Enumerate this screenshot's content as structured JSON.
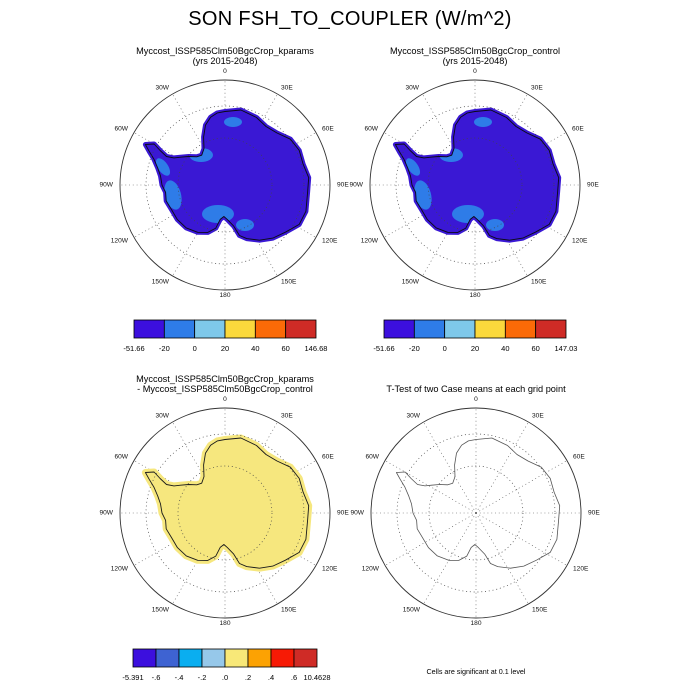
{
  "figure_title": "SON FSH_TO_COUPLER (W/m^2)",
  "grid_labels": [
    {
      "text": "0",
      "angle": 0
    },
    {
      "text": "30E",
      "angle": 30
    },
    {
      "text": "60E",
      "angle": 60
    },
    {
      "text": "90E",
      "angle": 90
    },
    {
      "text": "120E",
      "angle": 120
    },
    {
      "text": "150E",
      "angle": 150
    },
    {
      "text": "180",
      "angle": 180
    },
    {
      "text": "150W",
      "angle": 210
    },
    {
      "text": "120W",
      "angle": 240
    },
    {
      "text": "90W",
      "angle": 270
    },
    {
      "text": "60W",
      "angle": 300
    },
    {
      "text": "30W",
      "angle": 330
    }
  ],
  "panels": [
    {
      "id": "kparams",
      "title_lines": [
        "Myccost_ISSP585Clm50BgcCrop_kparams",
        "(yrs 2015-2048)"
      ],
      "map": {
        "continent_fill": "#3A18D4",
        "patch_fill": "#2E7CE8",
        "outline": "#0a0a14",
        "has_patches": true
      },
      "colorbar": {
        "colors": [
          "#3C0FDE",
          "#2E7CE8",
          "#7EC8EA",
          "#FBD93C",
          "#FB6A07",
          "#CF2B26"
        ],
        "tick_labels": [
          "-51.66",
          "-20",
          "0",
          "20",
          "40",
          "60",
          "146.68"
        ]
      }
    },
    {
      "id": "control",
      "title_lines": [
        "Myccost_ISSP585Clm50BgcCrop_control",
        "(yrs 2015-2048)"
      ],
      "map": {
        "continent_fill": "#3A18D4",
        "patch_fill": "#2E7CE8",
        "outline": "#0a0a14",
        "has_patches": true
      },
      "colorbar": {
        "colors": [
          "#3C0FDE",
          "#2E7CE8",
          "#7EC8EA",
          "#FBD93C",
          "#FB6A07",
          "#CF2B26"
        ],
        "tick_labels": [
          "-51.66",
          "-20",
          "0",
          "20",
          "40",
          "60",
          "147.03"
        ]
      }
    },
    {
      "id": "diff",
      "title_lines": [
        "Myccost_ISSP585Clm50BgcCrop_kparams",
        "- Myccost_ISSP585Clm50BgcCrop_control"
      ],
      "map": {
        "continent_fill": "#F6E77E",
        "outline": "#1a1a1a",
        "has_patches": false
      },
      "colorbar": {
        "colors": [
          "#3C0FDE",
          "#3E63D2",
          "#0AAEF0",
          "#96C8EA",
          "#F8E878",
          "#FCA203",
          "#F71A05",
          "#CF2B26"
        ],
        "tick_labels": [
          "-5.391",
          "-.6",
          "-.4",
          "-.2",
          ".0",
          ".2",
          ".4",
          ".6",
          "10.4628"
        ]
      }
    },
    {
      "id": "ttest",
      "title_lines": [
        "T-Test of two Case means at each grid point"
      ],
      "map": {
        "continent_fill": "none",
        "outline": "#555555",
        "has_patches": false
      },
      "note": "Cells are significant at 0.1 level"
    }
  ],
  "chart_data": [
    {
      "type": "heatmap",
      "panel": "top-left",
      "title": "Myccost_ISSP585Clm50BgcCrop_kparams (yrs 2015-2048)",
      "variable": "FSH_TO_COUPLER",
      "season": "SON",
      "units": "W/m^2",
      "projection": "south polar stereographic",
      "region": "Antarctica",
      "colorbar_levels": [
        -51.66,
        -20,
        0,
        20,
        40,
        60,
        146.68
      ],
      "colorbar_colors": [
        "#3C0FDE",
        "#2E7CE8",
        "#7EC8EA",
        "#FBD93C",
        "#FB6A07",
        "#CF2B26"
      ],
      "depiction": "Antarctic continent almost entirely below -20 W/m^2 (violet-blue); -20 to 0 (lighter blue) patches over Ross and Ronne ice shelves and the West Antarctic coast"
    },
    {
      "type": "heatmap",
      "panel": "top-right",
      "title": "Myccost_ISSP585Clm50BgcCrop_control (yrs 2015-2048)",
      "variable": "FSH_TO_COUPLER",
      "season": "SON",
      "units": "W/m^2",
      "projection": "south polar stereographic",
      "region": "Antarctica",
      "colorbar_levels": [
        -51.66,
        -20,
        0,
        20,
        40,
        60,
        147.03
      ],
      "colorbar_colors": [
        "#3C0FDE",
        "#2E7CE8",
        "#7EC8EA",
        "#FBD93C",
        "#FB6A07",
        "#CF2B26"
      ],
      "depiction": "Nearly identical to kparams panel: continent below -20 W/m^2 with lighter-blue ice-shelf patches"
    },
    {
      "type": "heatmap",
      "panel": "bottom-left",
      "title": "Myccost_ISSP585Clm50BgcCrop_kparams - Myccost_ISSP585Clm50BgcCrop_control",
      "variable": "FSH_TO_COUPLER difference",
      "units": "W/m^2",
      "projection": "south polar stereographic",
      "region": "Antarctica",
      "colorbar_levels": [
        -5.391,
        -0.6,
        -0.4,
        -0.2,
        0,
        0.2,
        0.4,
        0.6,
        10.4628
      ],
      "colorbar_colors": [
        "#3C0FDE",
        "#3E63D2",
        "#0AAEF0",
        "#96C8EA",
        "#F8E878",
        "#FCA203",
        "#F71A05",
        "#CF2B26"
      ],
      "depiction": "Difference near zero everywhere: continent uniformly in the 0 to 0.2 bin (pale yellow)"
    },
    {
      "type": "map",
      "panel": "bottom-right",
      "title": "T-Test of two Case means at each grid point",
      "note": "Cells are significant at 0.1 level",
      "projection": "south polar stereographic",
      "region": "Antarctica",
      "depiction": "Unfilled Antarctica coastline only; no grid cells shaded as significant"
    }
  ]
}
